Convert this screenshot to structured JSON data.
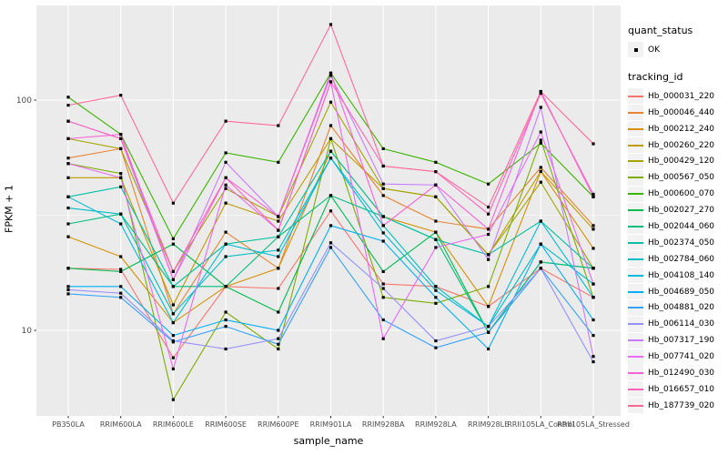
{
  "chart_data": {
    "type": "line",
    "title": "",
    "xlabel": "sample_name",
    "ylabel": "FPKM + 1",
    "y_scale": "log10",
    "y_ticks": [
      10,
      100
    ],
    "y_minor_ticks": [
      31.62
    ],
    "ylim": [
      4.2,
      260
    ],
    "grid": true,
    "legend_position": "right",
    "point_shape": "square",
    "point_color": "#000000",
    "categories": [
      "PB350LA",
      "RRIM600LA",
      "RRIM600LE",
      "RRIM600SE",
      "RRIM600PE",
      "RRIM901LA",
      "RRIM928BA",
      "RRIM928LA",
      "RRIM928LE",
      "RRII105LA_Control",
      "RRII105LA_Stressed"
    ],
    "series": [
      {
        "name": "Hb_000031_220",
        "color": "#F8766D",
        "values": [
          18.6,
          18.4,
          7.6,
          15.5,
          15.2,
          33.0,
          15.9,
          15.5,
          12.7,
          18.6,
          13.9
        ]
      },
      {
        "name": "Hb_000046_440",
        "color": "#EA8331",
        "values": [
          56.0,
          61.5,
          11.8,
          26.7,
          18.6,
          77.5,
          38.5,
          29.8,
          27.5,
          51.0,
          28.5
        ]
      },
      {
        "name": "Hb_000212_240",
        "color": "#D89000",
        "values": [
          25.5,
          20.9,
          10.8,
          15.5,
          18.6,
          60.0,
          31.2,
          26.7,
          12.7,
          49.0,
          22.7
        ]
      },
      {
        "name": "Hb_000260_220",
        "color": "#C09B00",
        "values": [
          46.0,
          46.0,
          12.9,
          35.7,
          29.8,
          68.0,
          41.3,
          38.0,
          21.3,
          49.0,
          27.5
        ]
      },
      {
        "name": "Hb_000429_120",
        "color": "#A3A500",
        "values": [
          68.0,
          61.5,
          18.0,
          41.3,
          31.2,
          98.0,
          41.3,
          38.0,
          21.3,
          44.0,
          18.6
        ]
      },
      {
        "name": "Hb_000567_050",
        "color": "#7CAE00",
        "values": [
          53.0,
          48.0,
          5.0,
          12.0,
          8.3,
          68.0,
          13.9,
          13.1,
          15.5,
          67.0,
          13.9
        ]
      },
      {
        "name": "Hb_000600_070",
        "color": "#39B600",
        "values": [
          103.0,
          71.0,
          25.0,
          59.0,
          53.7,
          131.0,
          61.5,
          53.7,
          43.2,
          65.0,
          38.0
        ]
      },
      {
        "name": "Hb_002027_270",
        "color": "#00BB4E",
        "values": [
          18.6,
          18.0,
          23.7,
          15.5,
          12.0,
          38.5,
          18.0,
          26.7,
          9.8,
          19.8,
          18.6
        ]
      },
      {
        "name": "Hb_002044_060",
        "color": "#00BF7D",
        "values": [
          29.0,
          32.0,
          15.5,
          15.5,
          25.5,
          38.5,
          31.2,
          24.8,
          9.8,
          19.8,
          18.6
        ]
      },
      {
        "name": "Hb_002374_050",
        "color": "#00C1A3",
        "values": [
          38.0,
          42.0,
          15.5,
          23.7,
          25.5,
          60.0,
          31.2,
          24.8,
          21.3,
          29.8,
          18.6
        ]
      },
      {
        "name": "Hb_002784_060",
        "color": "#00BFC4",
        "values": [
          34.0,
          32.0,
          11.8,
          20.9,
          22.3,
          56.0,
          28.5,
          15.5,
          10.4,
          23.7,
          15.9
        ]
      },
      {
        "name": "Hb_004108_140",
        "color": "#00BBDA",
        "values": [
          38.0,
          29.0,
          10.8,
          23.7,
          20.9,
          56.0,
          26.5,
          14.9,
          10.4,
          29.8,
          13.9
        ]
      },
      {
        "name": "Hb_004689_050",
        "color": "#00B0F6",
        "values": [
          15.5,
          15.5,
          9.5,
          11.1,
          10.0,
          28.5,
          24.4,
          13.9,
          8.3,
          23.7,
          11.1
        ]
      },
      {
        "name": "Hb_004881_020",
        "color": "#35A2FF",
        "values": [
          14.4,
          13.9,
          8.9,
          10.4,
          8.7,
          22.9,
          11.1,
          8.4,
          9.8,
          18.6,
          9.5
        ]
      },
      {
        "name": "Hb_006114_030",
        "color": "#9590FF",
        "values": [
          15.0,
          14.5,
          9.0,
          8.3,
          9.2,
          24.0,
          15.2,
          9.0,
          10.4,
          18.6,
          7.3
        ]
      },
      {
        "name": "Hb_007317_190",
        "color": "#C77CFF",
        "values": [
          81.0,
          68.0,
          16.6,
          53.7,
          31.2,
          128.0,
          43.2,
          42.8,
          20.3,
          93.0,
          7.7
        ]
      },
      {
        "name": "Hb_007741_020",
        "color": "#E76BF3",
        "values": [
          53.0,
          46.0,
          6.8,
          42.8,
          27.2,
          120.0,
          9.2,
          22.9,
          26.1,
          72.7,
          15.9
        ]
      },
      {
        "name": "Hb_012490_030",
        "color": "#FA62DB",
        "values": [
          68.0,
          71.0,
          16.6,
          46.0,
          31.2,
          131.0,
          28.5,
          42.8,
          27.5,
          109.0,
          38.0
        ]
      },
      {
        "name": "Hb_016657_010",
        "color": "#FF62BC",
        "values": [
          81.0,
          68.0,
          18.0,
          46.0,
          27.2,
          120.0,
          51.7,
          48.9,
          32.0,
          107.0,
          39.0
        ]
      },
      {
        "name": "Hb_187739_020",
        "color": "#FF6A98",
        "values": [
          95.0,
          105.0,
          35.7,
          81.0,
          77.5,
          213.0,
          51.7,
          48.9,
          34.3,
          109.0,
          64.6
        ]
      }
    ]
  },
  "legend": {
    "quant_status_title": "quant_status",
    "quant_ok_label": "OK",
    "tracking_id_title": "tracking_id"
  },
  "colors": {
    "panel_bg": "#EBEBEB",
    "grid": "#FFFFFF",
    "axis_text": "#4D4D4D",
    "tick_mark": "#333333",
    "legend_key_bg": "#F2F2F2"
  }
}
